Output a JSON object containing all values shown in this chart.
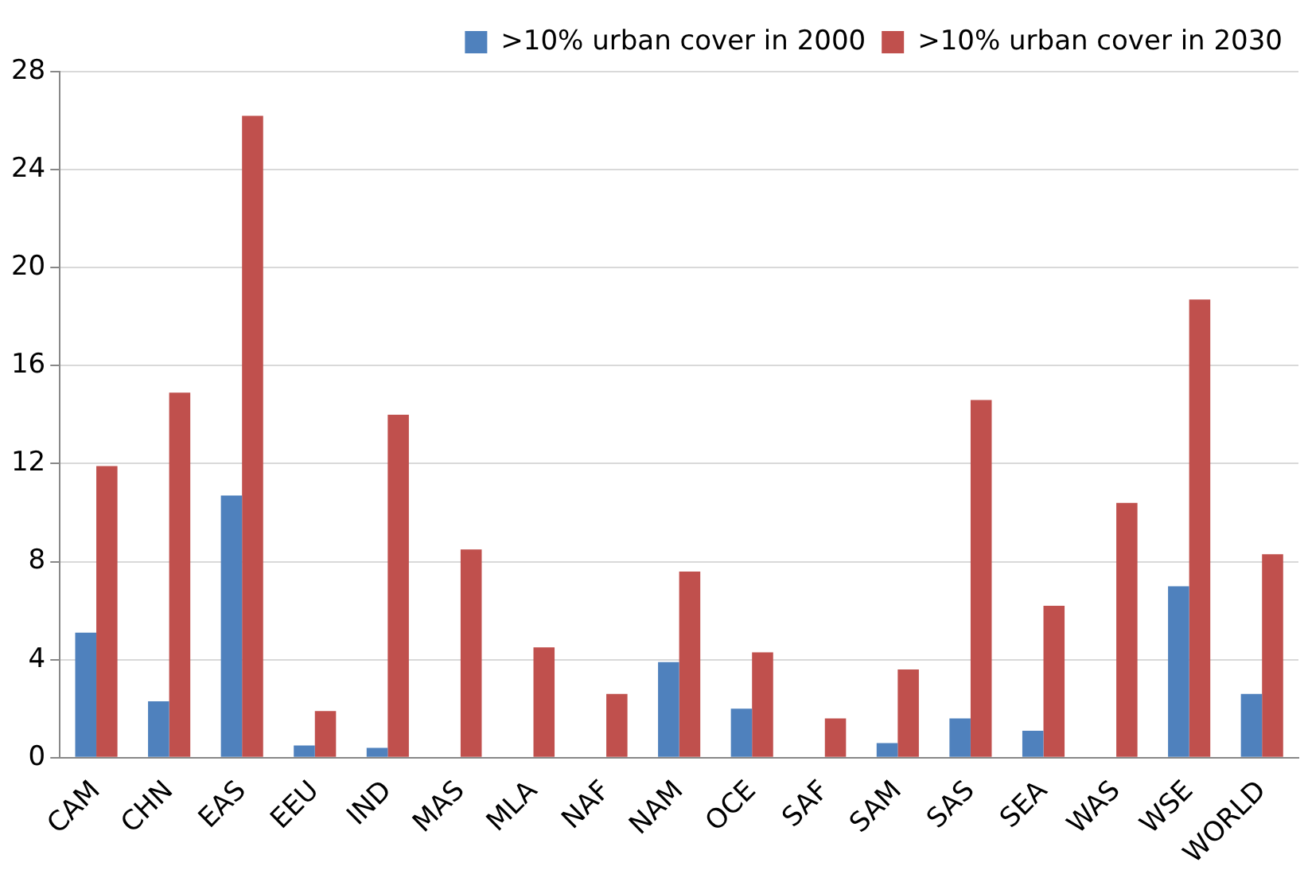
{
  "chart_data": {
    "type": "bar",
    "categories": [
      "CAM",
      "CHN",
      "EAS",
      "EEU",
      "IND",
      "MAS",
      "MLA",
      "NAF",
      "NAM",
      "OCE",
      "SAF",
      "SAM",
      "SAS",
      "SEA",
      "WAS",
      "WSE",
      "WORLD"
    ],
    "series": [
      {
        "name": ">10% urban cover in 2000",
        "color": "#4f81bd",
        "values": [
          5.1,
          2.3,
          10.7,
          0.5,
          0.4,
          0,
          0,
          0,
          3.9,
          2.0,
          0,
          0.6,
          1.6,
          1.1,
          0,
          7.0,
          2.6
        ]
      },
      {
        "name": ">10% urban cover in 2030",
        "color": "#c0504d",
        "values": [
          11.9,
          14.9,
          26.2,
          1.9,
          14.0,
          8.5,
          4.5,
          2.6,
          7.6,
          4.3,
          1.6,
          3.6,
          14.6,
          6.2,
          10.4,
          18.7,
          8.3
        ]
      }
    ],
    "ylim": [
      0,
      28
    ],
    "yticks": [
      0,
      4,
      8,
      12,
      16,
      20,
      24,
      28
    ],
    "grid": "y",
    "legend": "top right"
  }
}
